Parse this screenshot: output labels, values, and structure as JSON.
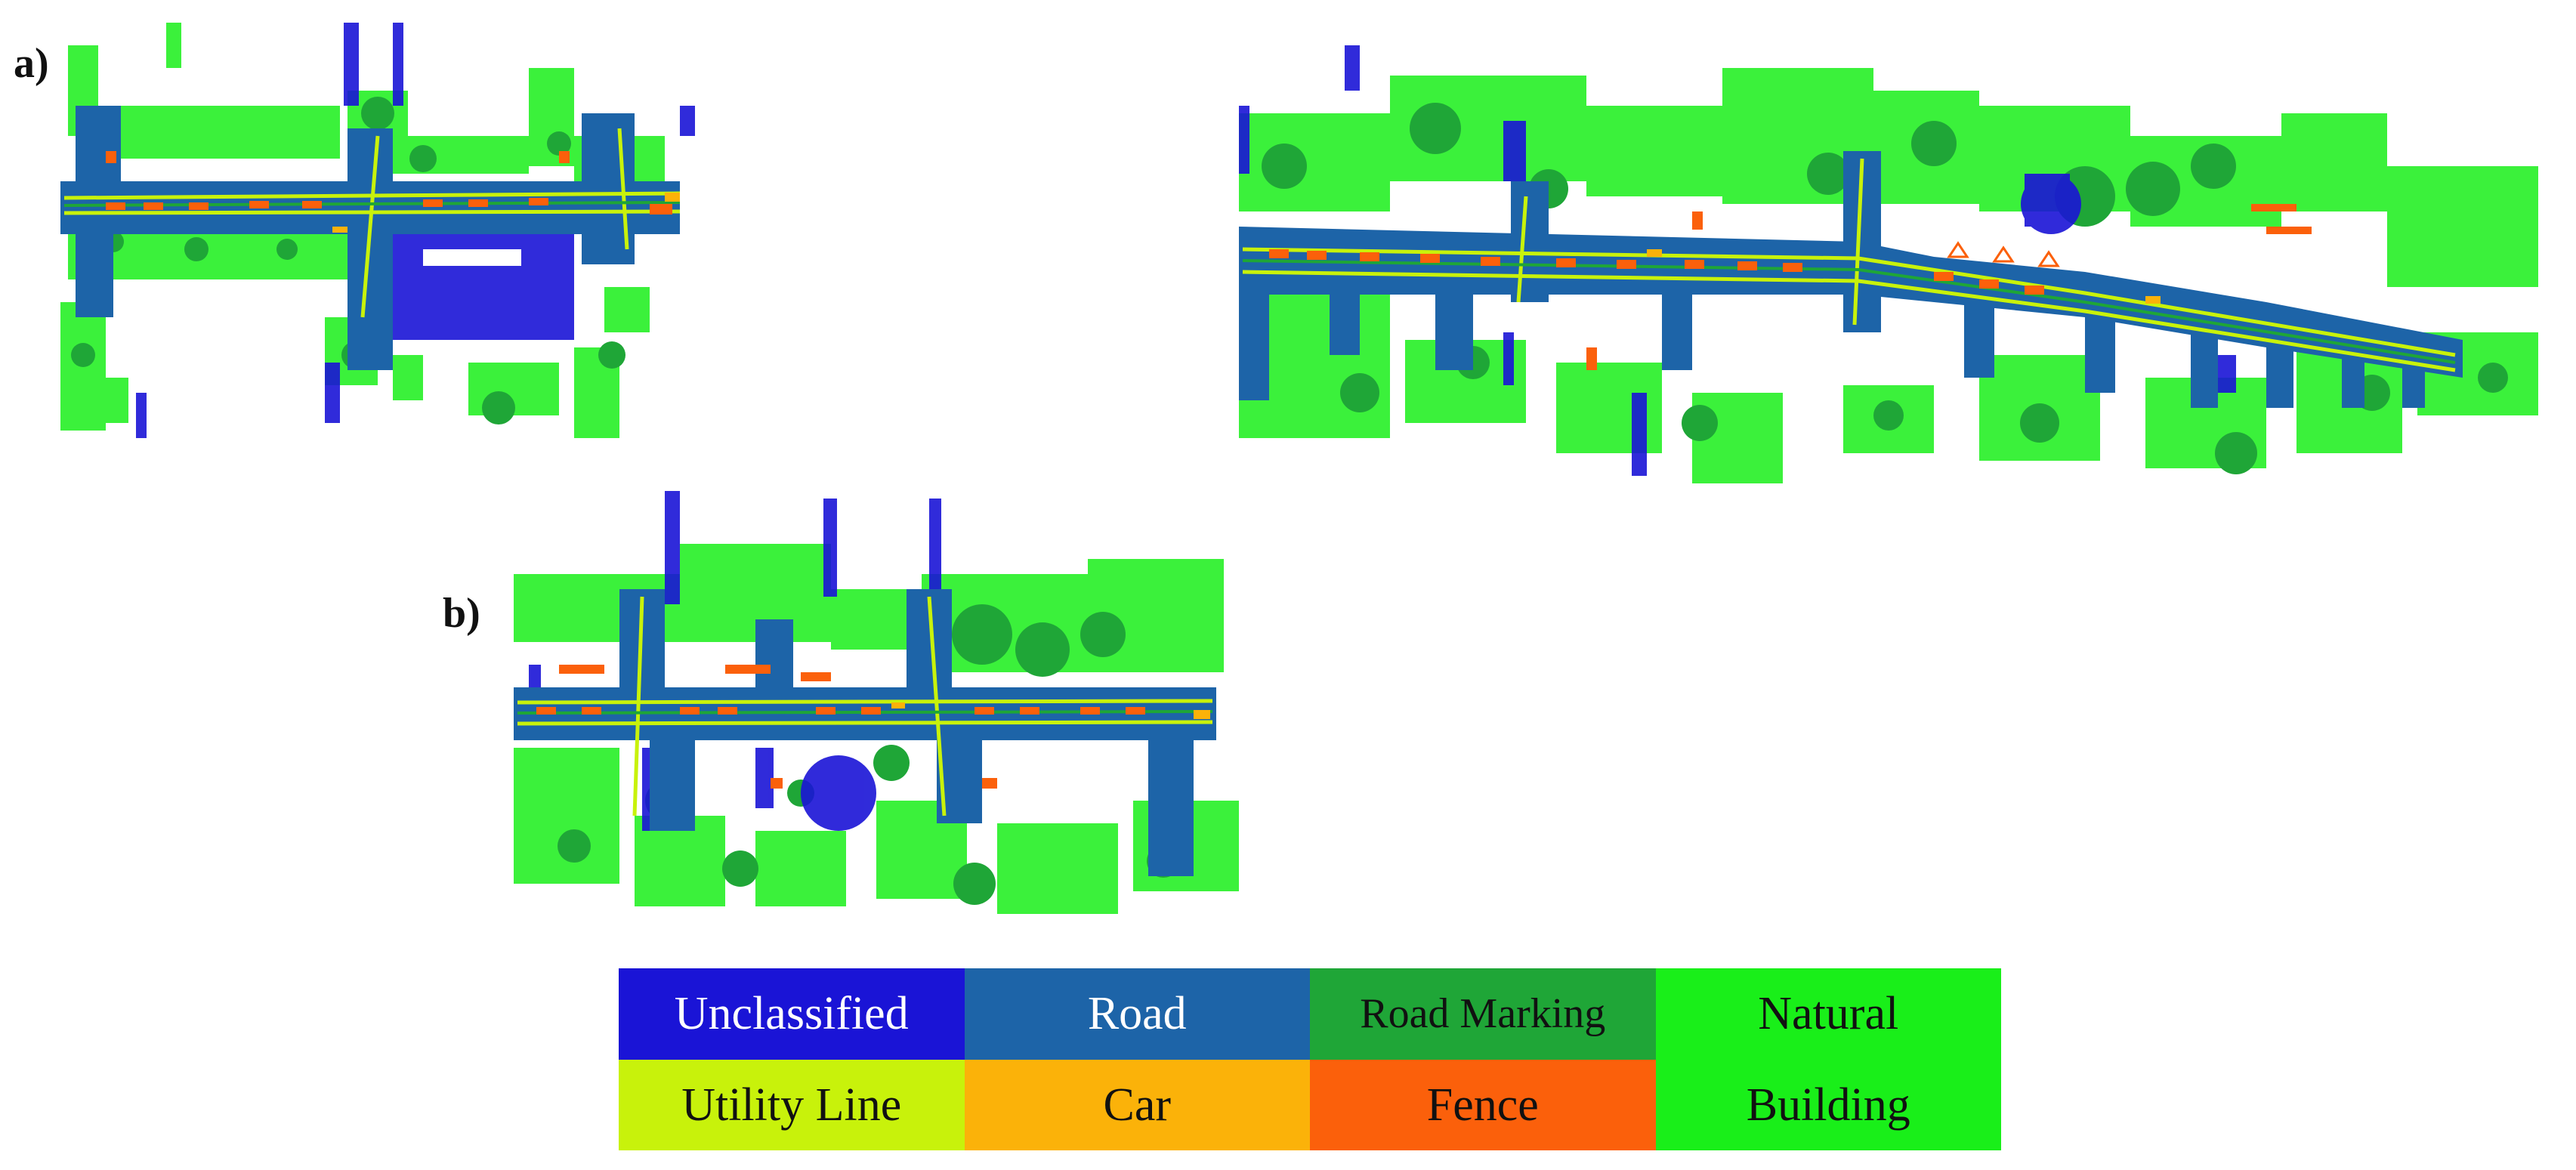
{
  "panels": {
    "a": "a)",
    "b": "b)"
  },
  "legend": [
    {
      "label": "Unclassified",
      "bg": "#1a14d6",
      "fg": "#ffffff"
    },
    {
      "label": "Road",
      "bg": "#1d64a8",
      "fg": "#ffffff"
    },
    {
      "label": "Road Marking",
      "bg": "#1fa637",
      "fg": "#111111"
    },
    {
      "label": "Natural",
      "bg": "#19ef19",
      "fg": "#111111"
    },
    {
      "label": "Utility Line",
      "bg": "#c8f20b",
      "fg": "#111111"
    },
    {
      "label": "Car",
      "bg": "#fbb209",
      "fg": "#111111"
    },
    {
      "label": "Fence",
      "bg": "#fb600b",
      "fg": "#111111"
    },
    {
      "label": "Building",
      "bg": "#19ef19",
      "fg": "#111111"
    }
  ],
  "class_colors": {
    "unclassified": "#1a14d6",
    "road": "#1d64a8",
    "road_marking": "#1fa637",
    "natural": "#19ef19",
    "utility_line": "#c8f20b",
    "car": "#fbb209",
    "fence": "#fb600b"
  }
}
